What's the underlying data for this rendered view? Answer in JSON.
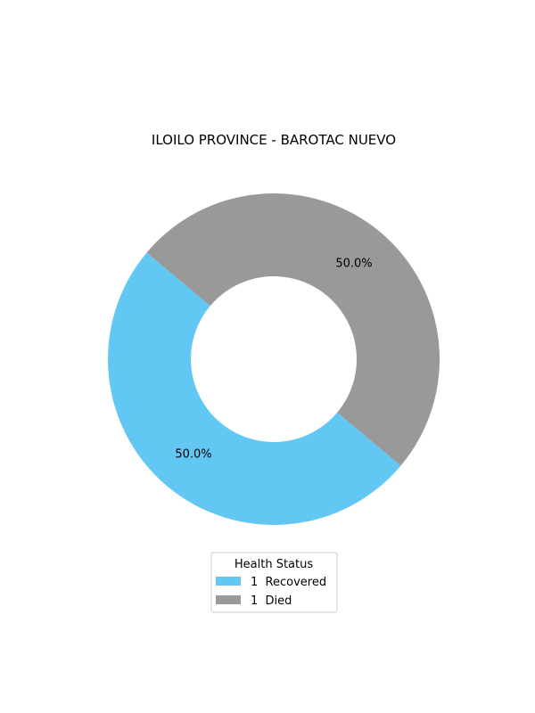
{
  "chart_data": {
    "type": "pie",
    "donut": true,
    "title": "ILOILO PROVINCE - BAROTAC NUEVO",
    "start_angle_deg": 140,
    "counterclockwise": true,
    "slices": [
      {
        "label": "Recovered",
        "value": 1,
        "percent_label": "50.0%",
        "legend_label": "1  Recovered",
        "color": "#62c8f3"
      },
      {
        "label": "Died",
        "value": 1,
        "percent_label": "50.0%",
        "legend_label": "1  Died",
        "color": "#999999"
      }
    ],
    "legend": {
      "title": "Health Status",
      "placement": "bottom-center"
    }
  }
}
